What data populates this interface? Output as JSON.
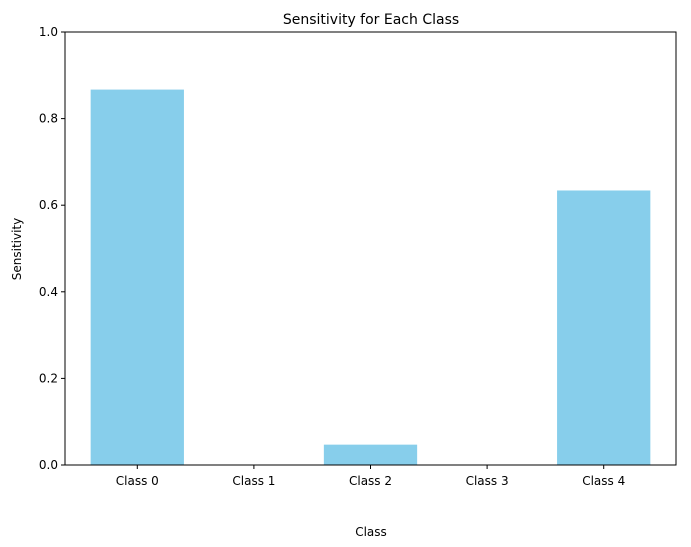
{
  "chart_data": {
    "type": "bar",
    "title": "Sensitivity for Each Class",
    "xlabel": "Class",
    "ylabel": "Sensitivity",
    "categories": [
      "Class 0",
      "Class 1",
      "Class 2",
      "Class 3",
      "Class 4"
    ],
    "values": [
      0.867,
      0.0,
      0.047,
      0.0,
      0.634
    ],
    "ylim": [
      0,
      1
    ],
    "yticks": [
      "0.0",
      "0.2",
      "0.4",
      "0.6",
      "0.8",
      "1.0"
    ],
    "bar_color": "#87ceeb",
    "grid": false
  }
}
